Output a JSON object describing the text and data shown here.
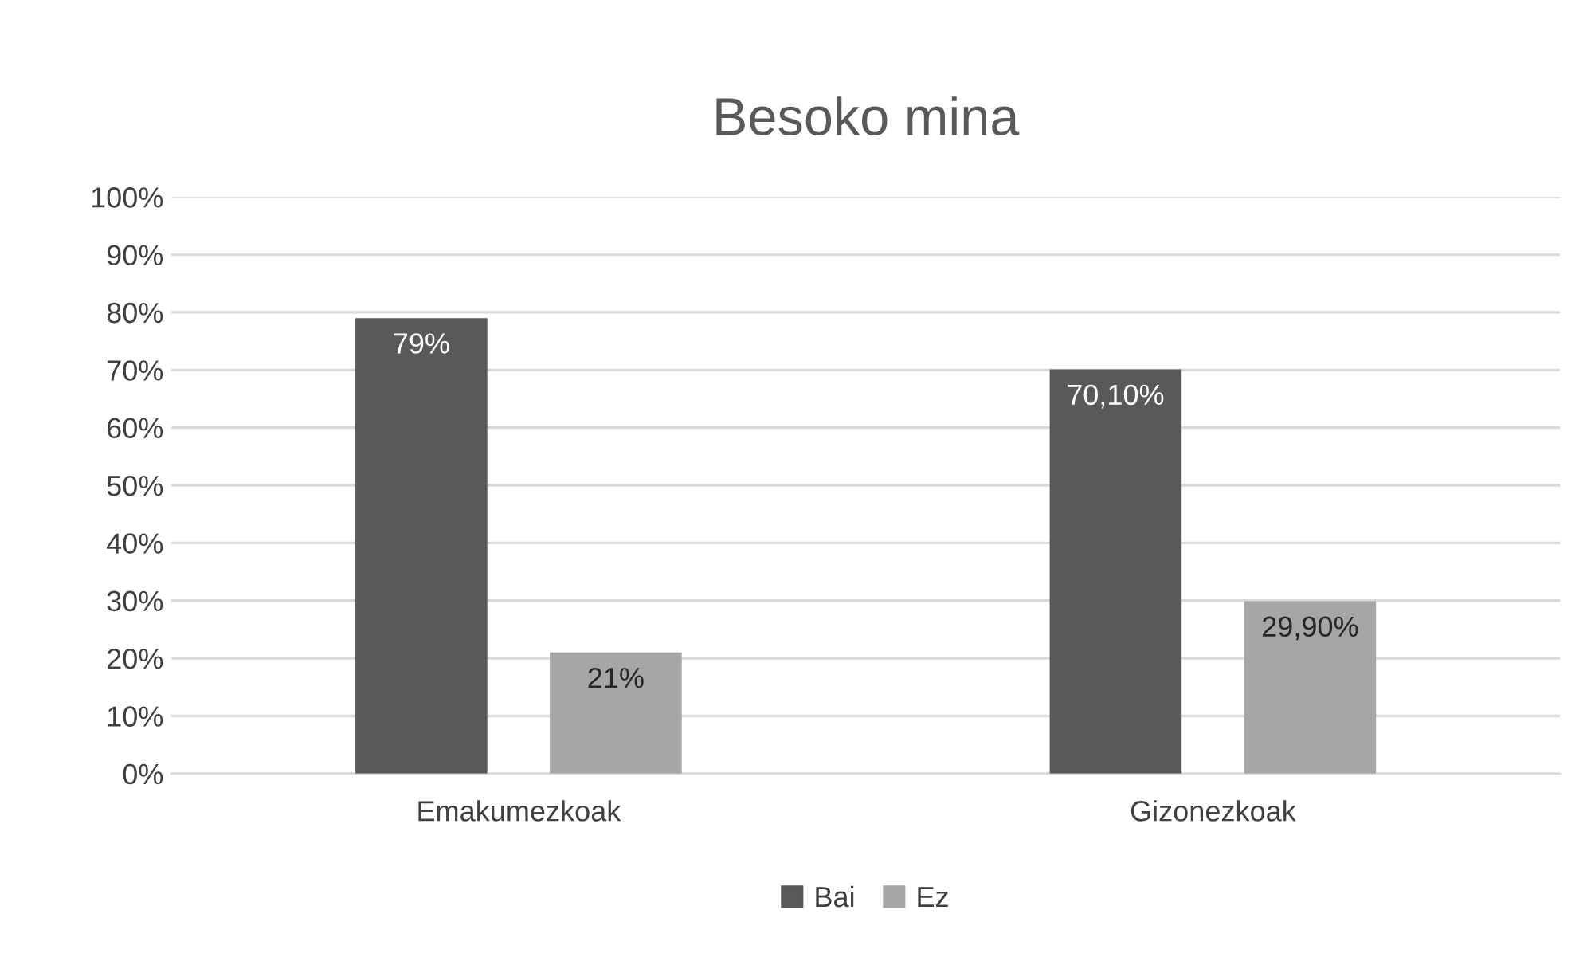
{
  "chart_data": {
    "type": "bar",
    "title": "Besoko mina",
    "categories": [
      "Emakumezkoak",
      "Gizonezkoak"
    ],
    "series": [
      {
        "name": "Bai",
        "color": "#595959",
        "values": [
          79,
          70.1
        ],
        "value_labels": [
          "79%",
          "70,10%"
        ]
      },
      {
        "name": "Ez",
        "color": "#a6a6a6",
        "values": [
          21,
          29.9
        ],
        "value_labels": [
          "21%",
          "29,90%"
        ]
      }
    ],
    "ylim": [
      0,
      100
    ],
    "yticks": [
      {
        "value": 0,
        "label": "0%"
      },
      {
        "value": 10,
        "label": "10%"
      },
      {
        "value": 20,
        "label": "20%"
      },
      {
        "value": 30,
        "label": "30%"
      },
      {
        "value": 40,
        "label": "40%"
      },
      {
        "value": 50,
        "label": "50%"
      },
      {
        "value": 60,
        "label": "60%"
      },
      {
        "value": 70,
        "label": "70%"
      },
      {
        "value": 80,
        "label": "80%"
      },
      {
        "value": 90,
        "label": "90%"
      },
      {
        "value": 100,
        "label": "100%"
      }
    ],
    "grid": "y",
    "legend": "bottom"
  }
}
